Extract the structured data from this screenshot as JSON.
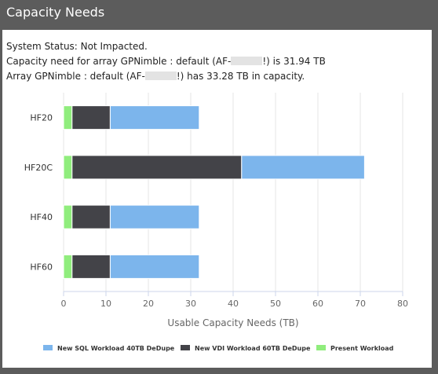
{
  "header": {
    "title": "Capacity Needs"
  },
  "status": {
    "line1": "System Status: Not Impacted.",
    "line2_a": "Capacity need for array GPNimble : default (AF-",
    "line2_b": "!) is 31.94 TB",
    "line3_a": "Array GPNimble : default (AF-",
    "line3_b": "!) has 33.28 TB in capacity."
  },
  "colors": {
    "present": "#90ed7d",
    "vdi": "#434348",
    "sql": "#7cb5ec",
    "grid": "#e6e6e6",
    "axis_text": "#666666"
  },
  "chart_data": {
    "type": "bar",
    "orientation": "horizontal",
    "stacked": true,
    "categories": [
      "HF20",
      "HF20C",
      "HF40",
      "HF60"
    ],
    "series": [
      {
        "name": "Present Workload",
        "color": "#90ed7d",
        "values": [
          2,
          2,
          2,
          2
        ]
      },
      {
        "name": "New VDI Workload 60TB DeDupe",
        "color": "#434348",
        "values": [
          9,
          40,
          9,
          9
        ]
      },
      {
        "name": "New SQL Workload 40TB DeDupe",
        "color": "#7cb5ec",
        "values": [
          21,
          29,
          21,
          21
        ]
      }
    ],
    "xlabel": "Usable Capacity Needs (TB)",
    "xlim": [
      0,
      80
    ],
    "xticks": [
      "0",
      "10",
      "20",
      "30",
      "40",
      "50",
      "60",
      "70",
      "80"
    ],
    "grid": true,
    "legend_position": "bottom",
    "legend": [
      {
        "label": "New SQL Workload 40TB DeDupe",
        "color": "#7cb5ec"
      },
      {
        "label": "New VDI Workload 60TB DeDupe",
        "color": "#434348"
      },
      {
        "label": "Present Workload",
        "color": "#90ed7d"
      }
    ]
  }
}
